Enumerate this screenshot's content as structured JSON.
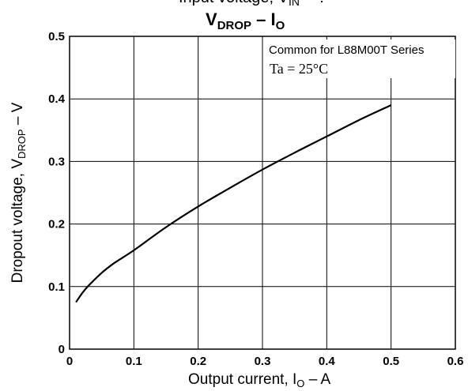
{
  "chart_data": {
    "type": "line",
    "partial_title": "Input voltage, V",
    "partial_title_sub": "IN",
    "partial_title_tail": " = ?",
    "title_main": "V",
    "title_main_sub": "DROP",
    "title_mid": " – I",
    "title_mid_sub": "O",
    "ylabel_main": "Dropout voltage, V",
    "ylabel_sub": "DROP",
    "ylabel_tail": " – V",
    "xlabel_main": "Output current, I",
    "xlabel_sub": "O",
    "xlabel_tail": " – A",
    "annotation_series": "Common for L88M00T Series",
    "annotation_temp": "Ta = 25°C",
    "xlim": [
      0,
      0.6
    ],
    "ylim": [
      0,
      0.5
    ],
    "x_ticks": [
      "0",
      "0.1",
      "0.2",
      "0.3",
      "0.4",
      "0.5",
      "0.6"
    ],
    "y_ticks": [
      "0",
      "0.1",
      "0.2",
      "0.3",
      "0.4",
      "0.5"
    ],
    "grid": true,
    "series": [
      {
        "x": [
          0.01,
          0.02,
          0.03,
          0.05,
          0.07,
          0.1,
          0.15,
          0.2,
          0.25,
          0.3,
          0.35,
          0.4,
          0.45,
          0.5
        ],
        "y": [
          0.075,
          0.09,
          0.102,
          0.122,
          0.138,
          0.158,
          0.195,
          0.228,
          0.258,
          0.287,
          0.314,
          0.34,
          0.366,
          0.39
        ]
      }
    ]
  }
}
